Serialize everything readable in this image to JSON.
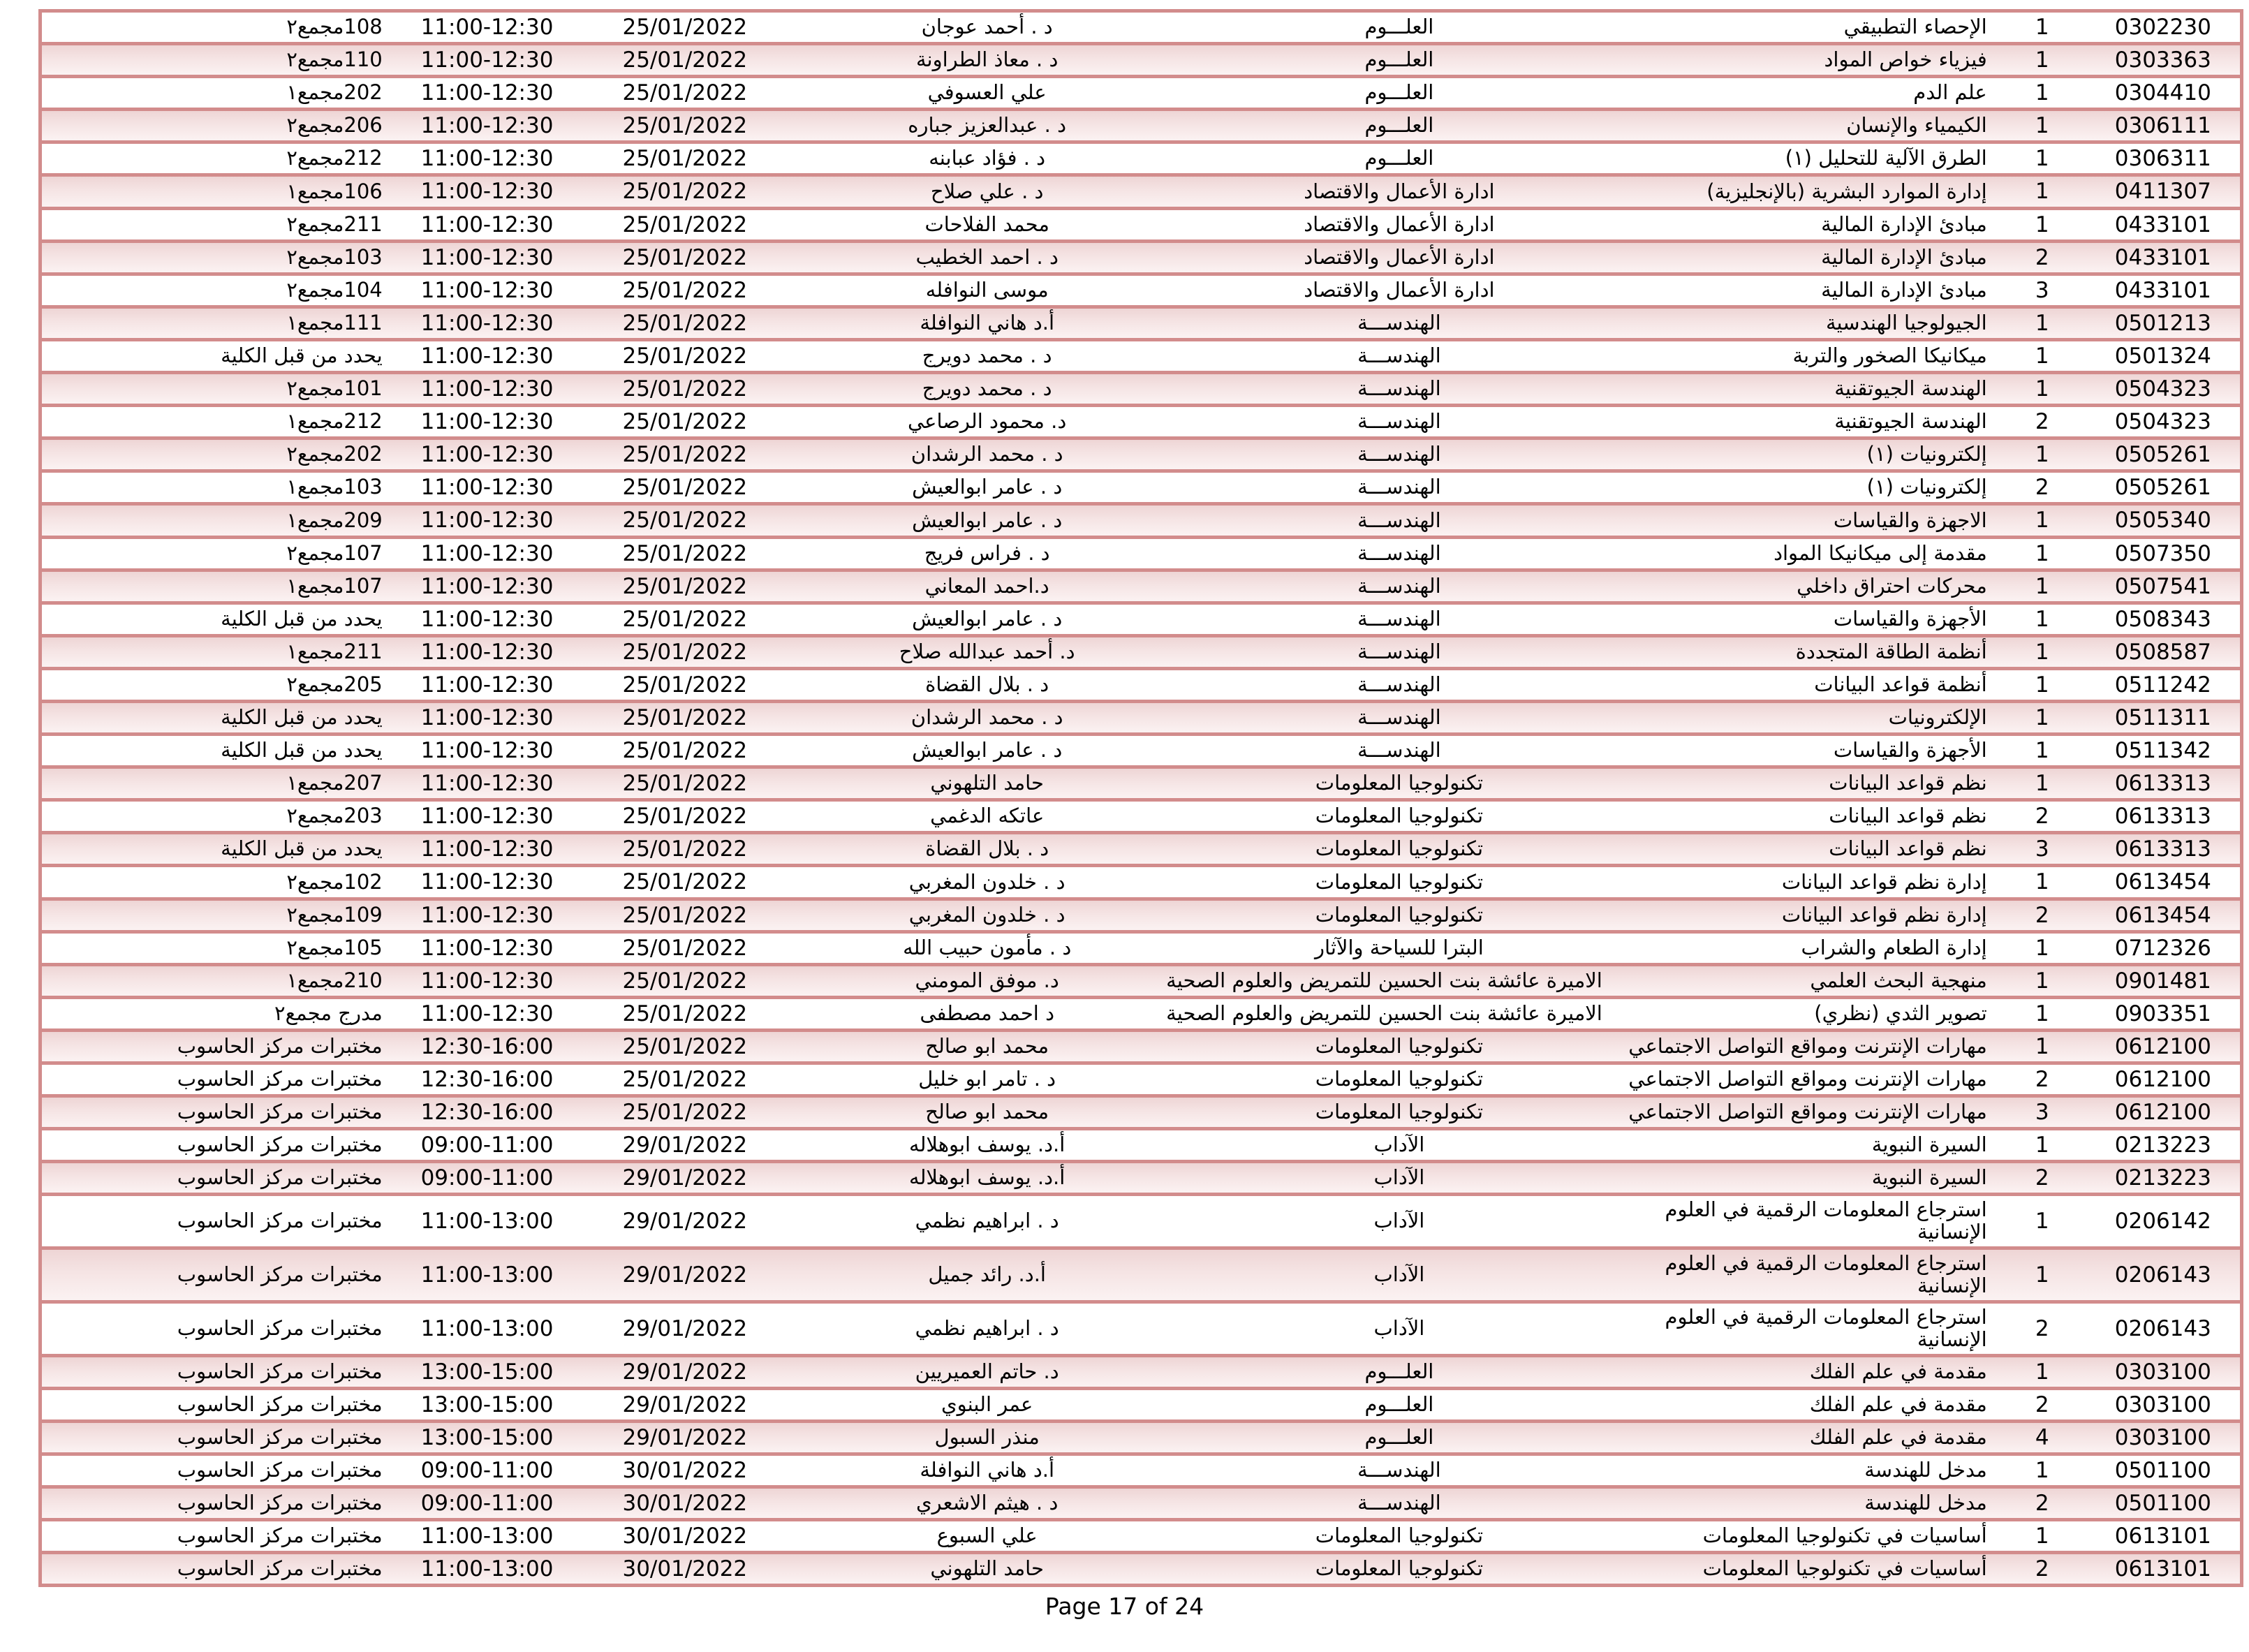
{
  "colors": {
    "table_border": "#d28c8c",
    "row_alt_fill_top": "#eed5d5",
    "row_alt_fill_mid": "#f5e4e4",
    "row_alt_fill_bottom": "#fbf2f2"
  },
  "footer": {
    "page_indicator": "Page 17 of 24"
  },
  "table": {
    "rows": [
      {
        "code": "0302230",
        "section": "1",
        "course": "الإحصاء التطبيقي",
        "faculty": "العلـــوم",
        "instructor": "د . أحمد عوجان",
        "date": "25/01/2022",
        "time": "11:00-12:30",
        "room": "108مجمع٢"
      },
      {
        "code": "0303363",
        "section": "1",
        "course": "فيزياء خواص المواد",
        "faculty": "العلـــوم",
        "instructor": "د . معاذ الطراونة",
        "date": "25/01/2022",
        "time": "11:00-12:30",
        "room": "110مجمع٢"
      },
      {
        "code": "0304410",
        "section": "1",
        "course": "علم الدم",
        "faculty": "العلـــوم",
        "instructor": "علي العسوفي",
        "date": "25/01/2022",
        "time": "11:00-12:30",
        "room": "202مجمع١"
      },
      {
        "code": "0306111",
        "section": "1",
        "course": "الكيمياء والإنسان",
        "faculty": "العلـــوم",
        "instructor": "د . عبدالعزيز جباره",
        "date": "25/01/2022",
        "time": "11:00-12:30",
        "room": "206مجمع٢"
      },
      {
        "code": "0306311",
        "section": "1",
        "course": "الطرق الآلية للتحليل (١)",
        "faculty": "العلـــوم",
        "instructor": "د . فؤاد عبابنه",
        "date": "25/01/2022",
        "time": "11:00-12:30",
        "room": "212مجمع٢"
      },
      {
        "code": "0411307",
        "section": "1",
        "course": "إدارة الموارد البشرية (بالإنجليزية)",
        "faculty": "ادارة الأعمال والاقتصاد",
        "instructor": "د . علي صلاح",
        "date": "25/01/2022",
        "time": "11:00-12:30",
        "room": "106مجمع١"
      },
      {
        "code": "0433101",
        "section": "1",
        "course": "مبادئ الإدارة المالية",
        "faculty": "ادارة الأعمال والاقتصاد",
        "instructor": "محمد الفلاحات",
        "date": "25/01/2022",
        "time": "11:00-12:30",
        "room": "211مجمع٢"
      },
      {
        "code": "0433101",
        "section": "2",
        "course": "مبادئ الإدارة المالية",
        "faculty": "ادارة الأعمال والاقتصاد",
        "instructor": "د . احمد الخطيب",
        "date": "25/01/2022",
        "time": "11:00-12:30",
        "room": "103مجمع٢"
      },
      {
        "code": "0433101",
        "section": "3",
        "course": "مبادئ الإدارة المالية",
        "faculty": "ادارة الأعمال والاقتصاد",
        "instructor": "موسى النوافله",
        "date": "25/01/2022",
        "time": "11:00-12:30",
        "room": "104مجمع٢"
      },
      {
        "code": "0501213",
        "section": "1",
        "course": "الجيولوجيا الهندسية",
        "faculty": "الهندســـة",
        "instructor": "أ.د هاني النوافلة",
        "date": "25/01/2022",
        "time": "11:00-12:30",
        "room": "111مجمع١"
      },
      {
        "code": "0501324",
        "section": "1",
        "course": "ميكانيكا الصخور والتربة",
        "faculty": "الهندســـة",
        "instructor": "د . محمد دويرج",
        "date": "25/01/2022",
        "time": "11:00-12:30",
        "room": "يحدد من قبل الكلية"
      },
      {
        "code": "0504323",
        "section": "1",
        "course": "الهندسة الجيوتقنية",
        "faculty": "الهندســـة",
        "instructor": "د . محمد دويرج",
        "date": "25/01/2022",
        "time": "11:00-12:30",
        "room": "101مجمع٢"
      },
      {
        "code": "0504323",
        "section": "2",
        "course": "الهندسة الجيوتقنية",
        "faculty": "الهندســـة",
        "instructor": "د. محمود الرصاعي",
        "date": "25/01/2022",
        "time": "11:00-12:30",
        "room": "212مجمع١"
      },
      {
        "code": "0505261",
        "section": "1",
        "course": "إلكترونيات (١)",
        "faculty": "الهندســـة",
        "instructor": "د . محمد الرشدان",
        "date": "25/01/2022",
        "time": "11:00-12:30",
        "room": "202مجمع٢"
      },
      {
        "code": "0505261",
        "section": "2",
        "course": "إلكترونيات (١)",
        "faculty": "الهندســـة",
        "instructor": "د . عامر ابوالعيش",
        "date": "25/01/2022",
        "time": "11:00-12:30",
        "room": "103مجمع١"
      },
      {
        "code": "0505340",
        "section": "1",
        "course": "الاجهزة والقياسات",
        "faculty": "الهندســـة",
        "instructor": "د . عامر ابوالعيش",
        "date": "25/01/2022",
        "time": "11:00-12:30",
        "room": "209مجمع١"
      },
      {
        "code": "0507350",
        "section": "1",
        "course": "مقدمة إلى ميكانيكا المواد",
        "faculty": "الهندســـة",
        "instructor": "د . فراس فريج",
        "date": "25/01/2022",
        "time": "11:00-12:30",
        "room": "107مجمع٢"
      },
      {
        "code": "0507541",
        "section": "1",
        "course": "محركات احتراق داخلي",
        "faculty": "الهندســـة",
        "instructor": "د.احمد المعاني",
        "date": "25/01/2022",
        "time": "11:00-12:30",
        "room": "107مجمع١"
      },
      {
        "code": "0508343",
        "section": "1",
        "course": "الأجهزة والقياسات",
        "faculty": "الهندســـة",
        "instructor": "د . عامر ابوالعيش",
        "date": "25/01/2022",
        "time": "11:00-12:30",
        "room": "يحدد من قبل الكلية"
      },
      {
        "code": "0508587",
        "section": "1",
        "course": "أنظمة الطاقة المتجددة",
        "faculty": "الهندســـة",
        "instructor": "د. أحمد عبدالله صلاح",
        "date": "25/01/2022",
        "time": "11:00-12:30",
        "room": "211مجمع١"
      },
      {
        "code": "0511242",
        "section": "1",
        "course": "أنظمة قواعد البيانات",
        "faculty": "الهندســـة",
        "instructor": "د . بلال القضاة",
        "date": "25/01/2022",
        "time": "11:00-12:30",
        "room": "205مجمع٢"
      },
      {
        "code": "0511311",
        "section": "1",
        "course": "الإلكترونيات",
        "faculty": "الهندســـة",
        "instructor": "د . محمد الرشدان",
        "date": "25/01/2022",
        "time": "11:00-12:30",
        "room": "يحدد من قبل الكلية"
      },
      {
        "code": "0511342",
        "section": "1",
        "course": "الأجهزة والقياسات",
        "faculty": "الهندســـة",
        "instructor": "د . عامر ابوالعيش",
        "date": "25/01/2022",
        "time": "11:00-12:30",
        "room": "يحدد من قبل الكلية"
      },
      {
        "code": "0613313",
        "section": "1",
        "course": "نظم قواعد البيانات",
        "faculty": "تكنولوجيا المعلومات",
        "instructor": "حامد التلهوني",
        "date": "25/01/2022",
        "time": "11:00-12:30",
        "room": "207مجمع١"
      },
      {
        "code": "0613313",
        "section": "2",
        "course": "نظم قواعد البيانات",
        "faculty": "تكنولوجيا المعلومات",
        "instructor": "عاتكه الدغمي",
        "date": "25/01/2022",
        "time": "11:00-12:30",
        "room": "203مجمع٢"
      },
      {
        "code": "0613313",
        "section": "3",
        "course": "نظم قواعد البيانات",
        "faculty": "تكنولوجيا المعلومات",
        "instructor": "د . بلال القضاة",
        "date": "25/01/2022",
        "time": "11:00-12:30",
        "room": "يحدد من قبل الكلية"
      },
      {
        "code": "0613454",
        "section": "1",
        "course": "إدارة نظم قواعد البيانات",
        "faculty": "تكنولوجيا المعلومات",
        "instructor": "د . خلدون المغربي",
        "date": "25/01/2022",
        "time": "11:00-12:30",
        "room": "102مجمع٢"
      },
      {
        "code": "0613454",
        "section": "2",
        "course": "إدارة نظم قواعد البيانات",
        "faculty": "تكنولوجيا المعلومات",
        "instructor": "د . خلدون المغربي",
        "date": "25/01/2022",
        "time": "11:00-12:30",
        "room": "109مجمع٢"
      },
      {
        "code": "0712326",
        "section": "1",
        "course": "إدارة الطعام والشراب",
        "faculty": "البترا للسياحة والآثار",
        "instructor": "د . مأمون حبيب الله",
        "date": "25/01/2022",
        "time": "11:00-12:30",
        "room": "105مجمع٢"
      },
      {
        "code": "0901481",
        "section": "1",
        "course": "منهجية البحث العلمي",
        "faculty": "الاميرة عائشة بنت الحسين للتمريض والعلوم الصحية",
        "instructor": "د. موفق المومني",
        "date": "25/01/2022",
        "time": "11:00-12:30",
        "room": "210مجمع١"
      },
      {
        "code": "0903351",
        "section": "1",
        "course": "تصوير الثدي (نظري)",
        "faculty": "الاميرة عائشة بنت الحسين للتمريض والعلوم الصحية",
        "instructor": "د احمد مصطفى",
        "date": "25/01/2022",
        "time": "11:00-12:30",
        "room": "مدرج مجمع٢"
      },
      {
        "code": "0612100",
        "section": "1",
        "course": "مهارات الإنترنت ومواقع التواصل الاجتماعي",
        "faculty": "تكنولوجيا المعلومات",
        "instructor": "محمد ابو صالح",
        "date": "25/01/2022",
        "time": "12:30-16:00",
        "room": "مختبرات مركز الحاسوب"
      },
      {
        "code": "0612100",
        "section": "2",
        "course": "مهارات الإنترنت ومواقع التواصل الاجتماعي",
        "faculty": "تكنولوجيا المعلومات",
        "instructor": "د . تامر ابو خليل",
        "date": "25/01/2022",
        "time": "12:30-16:00",
        "room": "مختبرات مركز الحاسوب"
      },
      {
        "code": "0612100",
        "section": "3",
        "course": "مهارات الإنترنت ومواقع التواصل الاجتماعي",
        "faculty": "تكنولوجيا المعلومات",
        "instructor": "محمد ابو صالح",
        "date": "25/01/2022",
        "time": "12:30-16:00",
        "room": "مختبرات مركز الحاسوب"
      },
      {
        "code": "0213223",
        "section": "1",
        "course": "السيرة النبوية",
        "faculty": "الآداب",
        "instructor": "أ.د. يوسف ابوهلاله",
        "date": "29/01/2022",
        "time": "09:00-11:00",
        "room": "مختبرات مركز الحاسوب"
      },
      {
        "code": "0213223",
        "section": "2",
        "course": "السيرة النبوية",
        "faculty": "الآداب",
        "instructor": "أ.د. يوسف ابوهلاله",
        "date": "29/01/2022",
        "time": "09:00-11:00",
        "room": "مختبرات مركز الحاسوب"
      },
      {
        "code": "0206142",
        "section": "1",
        "course": "استرجاع المعلومات الرقمية في العلوم الإنسانية",
        "faculty": "الآداب",
        "instructor": "د . ابراهيم نظمي",
        "date": "29/01/2022",
        "time": "11:00-13:00",
        "room": "مختبرات مركز الحاسوب"
      },
      {
        "code": "0206143",
        "section": "1",
        "course": "استرجاع المعلومات الرقمية في العلوم الإنسانية",
        "faculty": "الآداب",
        "instructor": "أ.د. رائد جميل",
        "date": "29/01/2022",
        "time": "11:00-13:00",
        "room": "مختبرات مركز الحاسوب"
      },
      {
        "code": "0206143",
        "section": "2",
        "course": "استرجاع المعلومات الرقمية في العلوم الإنسانية",
        "faculty": "الآداب",
        "instructor": "د . ابراهيم نظمي",
        "date": "29/01/2022",
        "time": "11:00-13:00",
        "room": "مختبرات مركز الحاسوب"
      },
      {
        "code": "0303100",
        "section": "1",
        "course": "مقدمة في علم الفلك",
        "faculty": "العلـــوم",
        "instructor": "د. حاتم العميريين",
        "date": "29/01/2022",
        "time": "13:00-15:00",
        "room": "مختبرات مركز الحاسوب"
      },
      {
        "code": "0303100",
        "section": "2",
        "course": "مقدمة في علم الفلك",
        "faculty": "العلـــوم",
        "instructor": "عمر البنوي",
        "date": "29/01/2022",
        "time": "13:00-15:00",
        "room": "مختبرات مركز الحاسوب"
      },
      {
        "code": "0303100",
        "section": "4",
        "course": "مقدمة في علم الفلك",
        "faculty": "العلـــوم",
        "instructor": "منذر السبول",
        "date": "29/01/2022",
        "time": "13:00-15:00",
        "room": "مختبرات مركز الحاسوب"
      },
      {
        "code": "0501100",
        "section": "1",
        "course": "مدخل للهندسة",
        "faculty": "الهندســـة",
        "instructor": "أ.د هاني النوافلة",
        "date": "30/01/2022",
        "time": "09:00-11:00",
        "room": "مختبرات مركز الحاسوب"
      },
      {
        "code": "0501100",
        "section": "2",
        "course": "مدخل للهندسة",
        "faculty": "الهندســـة",
        "instructor": "د . هيثم الاشعري",
        "date": "30/01/2022",
        "time": "09:00-11:00",
        "room": "مختبرات مركز الحاسوب"
      },
      {
        "code": "0613101",
        "section": "1",
        "course": "أساسيات في تكنولوجيا المعلومات",
        "faculty": "تكنولوجيا المعلومات",
        "instructor": "علي السبوع",
        "date": "30/01/2022",
        "time": "11:00-13:00",
        "room": "مختبرات مركز الحاسوب"
      },
      {
        "code": "0613101",
        "section": "2",
        "course": "أساسيات في تكنولوجيا المعلومات",
        "faculty": "تكنولوجيا المعلومات",
        "instructor": "حامد التلهوني",
        "date": "30/01/2022",
        "time": "11:00-13:00",
        "room": "مختبرات مركز الحاسوب"
      }
    ]
  }
}
